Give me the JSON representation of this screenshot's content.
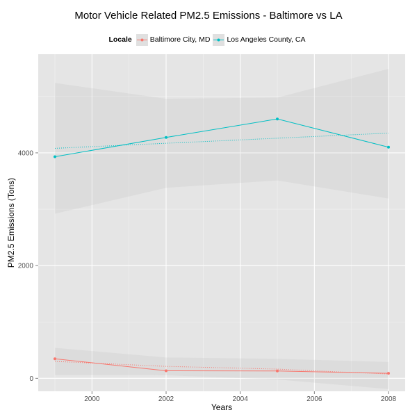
{
  "chart_data": {
    "type": "line",
    "title": "Motor Vehicle Related PM2.5 Emissions - Baltimore vs LA",
    "xlabel": "Years",
    "ylabel": "PM2.5 Emissions (Tons)",
    "xlim": [
      1998.55,
      2008.45
    ],
    "ylim": [
      -230,
      5750
    ],
    "x_ticks": [
      2000,
      2002,
      2004,
      2006,
      2008
    ],
    "x_tick_labels": [
      "2000",
      "2002",
      "2004",
      "2006",
      "2008"
    ],
    "y_ticks": [
      0,
      2000,
      4000
    ],
    "y_tick_labels": [
      "0",
      "2000",
      "4000"
    ],
    "grid": true,
    "legend": {
      "title": "Locale",
      "position": "top"
    },
    "series": [
      {
        "name": "Baltimore City, MD",
        "color": "#f8766d",
        "x": [
          1999,
          2002,
          2005,
          2008
        ],
        "values": [
          346.8,
          134.3,
          130.4,
          88.3
        ],
        "trend": [
          300,
          212,
          164,
          76
        ],
        "ci_upper": [
          540,
          370,
          345,
          290
        ],
        "ci_lower": [
          60,
          55,
          -20,
          -190
        ]
      },
      {
        "name": "Los Angeles County, CA",
        "color": "#00bfc4",
        "x": [
          1999,
          2002,
          2005,
          2008
        ],
        "values": [
          3931,
          4274,
          4601,
          4101
        ],
        "trend": [
          4080,
          4170,
          4260,
          4350
        ],
        "ci_upper": [
          5240,
          4960,
          4980,
          5490
        ],
        "ci_lower": [
          2920,
          3380,
          3510,
          3190
        ]
      }
    ]
  }
}
